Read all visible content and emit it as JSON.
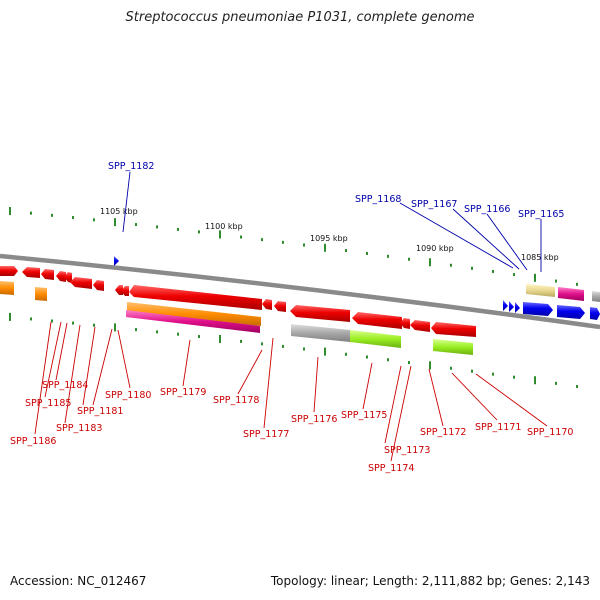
{
  "title": "Streptococcus pneumoniae P1031, complete genome",
  "footer": {
    "accession": "Accession: NC_012467",
    "summary": "Topology: linear; Length: 2,111,882 bp; Genes: 2,143"
  },
  "ruler": [
    "1105 kbp",
    "1100 kbp",
    "1095 kbp",
    "1090 kbp",
    "1085 kbp"
  ],
  "colors": {
    "backbone": "#7a7a7a",
    "tick": "#2e8b2e",
    "gene_red": "#e00000",
    "gene_blue": "#0000e0",
    "orange": "#ff8c00",
    "pink": "#e0108a",
    "gray": "#a8a8a8",
    "lime": "#99ee22",
    "khaki": "#e8d890",
    "label_red": "#cc0000",
    "label_blue": "#0000aa"
  },
  "labels_top": [
    "SPP_1182",
    "SPP_1168",
    "SPP_1167",
    "SPP_1166",
    "SPP_1165"
  ],
  "labels_bottom": [
    "SPP_1184",
    "SPP_1185",
    "SPP_1186",
    "SPP_1181",
    "SPP_1183",
    "SPP_1180",
    "SPP_1179",
    "SPP_1178",
    "SPP_1177",
    "SPP_1176",
    "SPP_1175",
    "SPP_1173",
    "SPP_1174",
    "SPP_1172",
    "SPP_1171",
    "SPP_1170"
  ]
}
